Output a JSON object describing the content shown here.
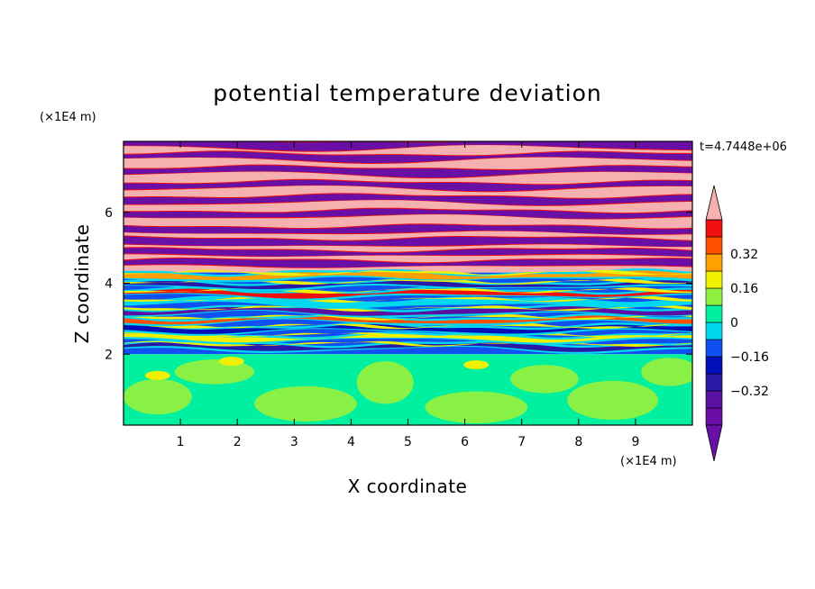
{
  "chart_data": {
    "type": "heatmap",
    "title": "potential temperature deviation",
    "xlabel": "X coordinate",
    "ylabel": "Z coordinate",
    "x_unit": "(×1E4 m)",
    "y_unit": "(×1E4 m)",
    "time_label": "t=4.7448e+06",
    "xlim": [
      0,
      10
    ],
    "ylim": [
      0,
      8
    ],
    "x_ticks": [
      {
        "value": 1,
        "label": "1"
      },
      {
        "value": 2,
        "label": "2"
      },
      {
        "value": 3,
        "label": "3"
      },
      {
        "value": 4,
        "label": "4"
      },
      {
        "value": 5,
        "label": "5"
      },
      {
        "value": 6,
        "label": "6"
      },
      {
        "value": 7,
        "label": "7"
      },
      {
        "value": 8,
        "label": "8"
      },
      {
        "value": 9,
        "label": "9"
      }
    ],
    "y_ticks": [
      {
        "value": 2,
        "label": "2"
      },
      {
        "value": 4,
        "label": "4"
      },
      {
        "value": 6,
        "label": "6"
      }
    ],
    "colorbar": {
      "levels": [
        -0.48,
        -0.4,
        -0.32,
        -0.24,
        -0.16,
        -0.08,
        0,
        0.08,
        0.16,
        0.24,
        0.32,
        0.4,
        0.48
      ],
      "colors": [
        "#6a0fa5",
        "#5a10a0",
        "#2a18a8",
        "#0010b8",
        "#1050f0",
        "#00d8f0",
        "#00f0a0",
        "#90f040",
        "#f0f000",
        "#ffa000",
        "#ff5000",
        "#f01010",
        "#f5b0b0"
      ],
      "labels": [
        {
          "value": -0.32,
          "label": "−0.32"
        },
        {
          "value": -0.16,
          "label": "−0.16"
        },
        {
          "value": 0,
          "label": "0"
        },
        {
          "value": 0.16,
          "label": "0.16"
        },
        {
          "value": 0.32,
          "label": "0.32"
        }
      ],
      "extend": "both"
    },
    "field": {
      "mixed_layer_top": 2.0,
      "transition_top": 4.3,
      "domain_top": 8.0,
      "stratified_bands": [
        {
          "z": 4.55,
          "thickness": 0.18
        },
        {
          "z": 4.85,
          "thickness": 0.16
        },
        {
          "z": 5.15,
          "thickness": 0.22
        },
        {
          "z": 5.5,
          "thickness": 0.2
        },
        {
          "z": 5.95,
          "thickness": 0.18
        },
        {
          "z": 6.35,
          "thickness": 0.2
        },
        {
          "z": 6.75,
          "thickness": 0.18
        },
        {
          "z": 7.15,
          "thickness": 0.2
        },
        {
          "z": 7.55,
          "thickness": 0.18
        },
        {
          "z": 7.9,
          "thickness": 0.22
        }
      ],
      "transition_bands": [
        {
          "z": 2.2,
          "thickness": 0.12
        },
        {
          "z": 2.45,
          "thickness": 0.1
        },
        {
          "z": 2.7,
          "thickness": 0.12
        },
        {
          "z": 2.95,
          "thickness": 0.1
        },
        {
          "z": 3.2,
          "thickness": 0.14
        },
        {
          "z": 3.45,
          "thickness": 0.1
        },
        {
          "z": 3.7,
          "thickness": 0.12
        },
        {
          "z": 3.95,
          "thickness": 0.1
        },
        {
          "z": 4.2,
          "thickness": 0.14
        }
      ]
    }
  }
}
